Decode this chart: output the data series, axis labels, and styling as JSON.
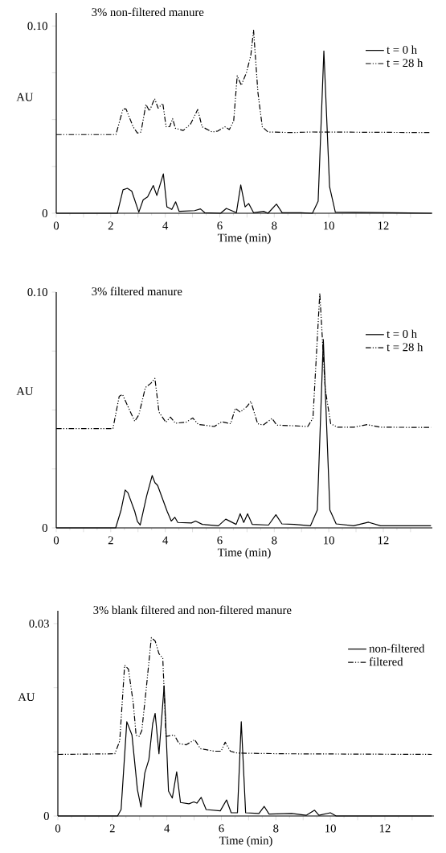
{
  "chart_data": [
    {
      "type": "line",
      "title": "3% non-filtered manure",
      "xlabel": "Time (min)",
      "ylabel": "AU",
      "legend": "top right",
      "xlim": [
        0,
        13.8
      ],
      "ylim": [
        0,
        0.107
      ],
      "xticks": [
        0,
        {
          "value": 1,
          "label": null
        },
        2,
        {
          "value": 3,
          "label": null
        },
        4,
        {
          "value": 5,
          "label": null
        },
        6,
        {
          "value": 7,
          "label": null
        },
        8,
        {
          "value": 9,
          "label": null
        },
        10,
        {
          "value": 11,
          "label": null
        },
        12,
        {
          "value": 13,
          "label": null
        }
      ],
      "yticks": [
        0,
        {
          "value": 0.025,
          "label": null
        },
        {
          "value": 0.05,
          "label": null
        },
        {
          "value": 0.075,
          "label": null
        },
        {
          "value": 0.1,
          "label": "0.10"
        }
      ],
      "series": [
        {
          "name": "t = 0 h",
          "color": "#000000",
          "line_style": "solid",
          "x": [
            0,
            2.24,
            2.45,
            2.61,
            2.77,
            3.03,
            3.19,
            3.35,
            3.56,
            3.69,
            3.93,
            4.06,
            4.24,
            4.38,
            4.51,
            5.08,
            5.29,
            5.45,
            6.03,
            6.24,
            6.61,
            6.77,
            6.93,
            7.06,
            7.24,
            7.61,
            7.77,
            8.08,
            8.29,
            8.98,
            9.4,
            9.61,
            9.82,
            10.03,
            10.24,
            13.77
          ],
          "values": [
            0,
            0,
            0.0125,
            0.0133,
            0.0118,
            0.0006,
            0.0072,
            0.0087,
            0.0148,
            0.0095,
            0.021,
            0.0034,
            0.002,
            0.0061,
            0.001,
            0.0014,
            0.0023,
            0.0003,
            0,
            0.0026,
            0.0003,
            0.0151,
            0.0034,
            0.0052,
            0.0003,
            0.001,
            0,
            0.0049,
            0.0003,
            0.0003,
            0,
            0.0064,
            0.0867,
            0.0141,
            0.0006,
            0
          ]
        },
        {
          "name": "t = 28 h",
          "color": "#000000",
          "line_style": "dashdotdotted",
          "x": [
            0,
            2.19,
            2.45,
            2.56,
            2.82,
            2.98,
            3.11,
            3.29,
            3.42,
            3.61,
            3.74,
            3.91,
            4.03,
            4.16,
            4.27,
            4.37,
            4.66,
            4.93,
            5.19,
            5.35,
            5.72,
            5.93,
            6.19,
            6.35,
            6.51,
            6.64,
            6.79,
            6.98,
            7.14,
            7.24,
            7.4,
            7.56,
            7.77,
            8.66,
            9.4,
            13.72
          ],
          "values": [
            0.042,
            0.042,
            0.0557,
            0.0557,
            0.0462,
            0.0428,
            0.0434,
            0.0581,
            0.0546,
            0.0612,
            0.0561,
            0.0587,
            0.0462,
            0.0462,
            0.0505,
            0.0454,
            0.0442,
            0.0477,
            0.0554,
            0.0462,
            0.0434,
            0.0439,
            0.0462,
            0.0447,
            0.0492,
            0.0734,
            0.0683,
            0.0752,
            0.0844,
            0.0977,
            0.0645,
            0.0462,
            0.0434,
            0.0431,
            0.0434,
            0.0431
          ]
        }
      ]
    },
    {
      "type": "line",
      "title": "3% filtered manure",
      "xlabel": "Time (min)",
      "ylabel": "AU",
      "legend": "top right",
      "xlim": [
        0,
        13.8
      ],
      "ylim": [
        0,
        0.1
      ],
      "xticks": [
        0,
        {
          "value": 1,
          "label": null
        },
        2,
        {
          "value": 3,
          "label": null
        },
        4,
        {
          "value": 5,
          "label": null
        },
        6,
        {
          "value": 7,
          "label": null
        },
        8,
        {
          "value": 9,
          "label": null
        },
        10,
        {
          "value": 11,
          "label": null
        },
        12,
        {
          "value": 13,
          "label": null
        }
      ],
      "yticks": [
        0,
        {
          "value": 0.025,
          "label": null
        },
        {
          "value": 0.05,
          "label": null
        },
        {
          "value": 0.075,
          "label": null
        },
        {
          "value": 0.1,
          "label": "0.10"
        }
      ],
      "series": [
        {
          "name": "t = 0 h",
          "color": "#000000",
          "line_style": "solid",
          "x": [
            0,
            2.18,
            2.38,
            2.53,
            2.63,
            2.88,
            2.98,
            3.08,
            3.32,
            3.52,
            3.62,
            3.72,
            4.07,
            4.22,
            4.35,
            4.46,
            4.96,
            5.11,
            5.36,
            5.95,
            6.22,
            6.6,
            6.75,
            6.88,
            7.02,
            7.19,
            7.79,
            8.06,
            8.28,
            8.73,
            9.33,
            9.58,
            9.8,
            10.04,
            10.27,
            10.91,
            11.46,
            11.9,
            13.75
          ],
          "values": [
            0,
            0,
            0.0076,
            0.0161,
            0.0149,
            0.007,
            0.0027,
            0.0012,
            0.0137,
            0.0222,
            0.0192,
            0.018,
            0.007,
            0.0029,
            0.0045,
            0.0023,
            0.0021,
            0.0029,
            0.0015,
            0.0009,
            0.0037,
            0.0015,
            0.006,
            0.0023,
            0.006,
            0.0015,
            0.0012,
            0.0056,
            0.0017,
            0.0015,
            0.0009,
            0.0076,
            0.0799,
            0.0076,
            0.0017,
            0.0009,
            0.0024,
            0.0009,
            0.0009
          ]
        },
        {
          "name": "t = 28 h",
          "color": "#000000",
          "line_style": "dashdotdotted",
          "x": [
            0,
            2.08,
            2.31,
            2.43,
            2.63,
            2.88,
            3.03,
            3.27,
            3.47,
            3.62,
            3.77,
            4.02,
            4.19,
            4.37,
            4.76,
            5.01,
            5.21,
            5.8,
            6.07,
            6.4,
            6.57,
            6.75,
            7.0,
            7.14,
            7.39,
            7.59,
            7.92,
            8.09,
            8.73,
            9.23,
            9.42,
            9.67,
            9.87,
            10.07,
            10.32,
            10.91,
            11.41,
            11.9,
            13.75
          ],
          "values": [
            0.0421,
            0.0421,
            0.0558,
            0.0566,
            0.0515,
            0.0452,
            0.0479,
            0.0595,
            0.0613,
            0.0634,
            0.0491,
            0.0448,
            0.047,
            0.0444,
            0.0448,
            0.0466,
            0.0439,
            0.043,
            0.045,
            0.0442,
            0.0507,
            0.0491,
            0.0515,
            0.0537,
            0.0442,
            0.0436,
            0.0464,
            0.0436,
            0.0433,
            0.043,
            0.0466,
            0.0995,
            0.0589,
            0.0442,
            0.0427,
            0.0427,
            0.0438,
            0.0427,
            0.0426
          ]
        }
      ]
    },
    {
      "type": "line",
      "title": "3% blank filtered and non-filtered manure",
      "xlabel": "Time (min)",
      "ylabel": "AU",
      "legend": "top right",
      "xlim": [
        0,
        13.8
      ],
      "ylim": [
        0,
        0.032
      ],
      "xticks": [
        0,
        {
          "value": 1,
          "label": null
        },
        2,
        {
          "value": 3,
          "label": null
        },
        4,
        {
          "value": 5,
          "label": null
        },
        6,
        {
          "value": 7,
          "label": null
        },
        8,
        {
          "value": 9,
          "label": null
        },
        10,
        {
          "value": 11,
          "label": null
        },
        12,
        {
          "value": 13,
          "label": null
        }
      ],
      "yticks": [
        0,
        {
          "value": 0.01,
          "label": null
        },
        {
          "value": 0.02,
          "label": null
        },
        0.03
      ],
      "series": [
        {
          "name": "non-filtered",
          "color": "#000000",
          "line_style": "solid",
          "x": [
            0,
            2.19,
            2.32,
            2.53,
            2.72,
            2.92,
            3.05,
            3.19,
            3.34,
            3.48,
            3.57,
            3.71,
            3.9,
            4.06,
            4.2,
            4.36,
            4.5,
            4.81,
            4.99,
            5.1,
            5.26,
            5.44,
            5.96,
            6.19,
            6.36,
            6.59,
            6.73,
            6.89,
            7.38,
            7.57,
            7.75,
            8.58,
            9.11,
            9.42,
            9.58,
            10.0,
            10.21,
            13.72
          ],
          "values": [
            0,
            0,
            0.001,
            0.0147,
            0.0126,
            0.0041,
            0.0014,
            0.0067,
            0.0088,
            0.0144,
            0.016,
            0.0097,
            0.0203,
            0.0039,
            0.0028,
            0.0069,
            0.0021,
            0.0019,
            0.0022,
            0.002,
            0.0029,
            0.001,
            0.0008,
            0.0025,
            0.0005,
            0.0005,
            0.0147,
            0.0005,
            0.0004,
            0.0015,
            0.0003,
            0.0004,
            0.0001,
            0.0009,
            0.0001,
            0.0005,
            0,
            0
          ]
        },
        {
          "name": "filtered",
          "color": "#000000",
          "line_style": "dashdotdotted",
          "x": [
            0,
            2.09,
            2.27,
            2.45,
            2.59,
            2.77,
            2.87,
            2.98,
            3.08,
            3.24,
            3.43,
            3.57,
            3.71,
            3.85,
            3.97,
            4.2,
            4.28,
            4.44,
            4.71,
            5.02,
            5.23,
            5.75,
            5.99,
            6.14,
            6.33,
            6.59,
            8.27,
            13.72
          ],
          "values": [
            0.0096,
            0.0097,
            0.0117,
            0.0235,
            0.0229,
            0.0175,
            0.0126,
            0.0124,
            0.0133,
            0.0197,
            0.0278,
            0.0273,
            0.0253,
            0.0246,
            0.0124,
            0.0126,
            0.0126,
            0.0113,
            0.0111,
            0.0119,
            0.0105,
            0.0101,
            0.0101,
            0.0115,
            0.0101,
            0.0098,
            0.0097,
            0.0096
          ]
        }
      ]
    }
  ]
}
